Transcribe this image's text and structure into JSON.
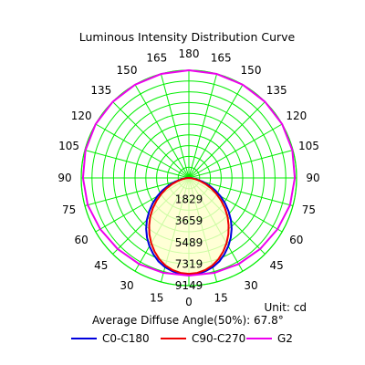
{
  "chart_data": {
    "type": "polar",
    "title": "Luminous Intensity Distribution Curve",
    "unit_label": "Unit: cd",
    "average_angle_label": "Average Diffuse Angle(50%): 67.8°",
    "angle_labels_left": [
      "0",
      "15",
      "30",
      "45",
      "60",
      "75",
      "90",
      "105",
      "120",
      "135",
      "150",
      "165",
      "180"
    ],
    "angle_labels_right": [
      "15",
      "30",
      "45",
      "60",
      "75",
      "90",
      "105",
      "120",
      "135",
      "150",
      "165"
    ],
    "radial_ticks": [
      "1829",
      "3659",
      "5489",
      "7319",
      "9149"
    ],
    "radial_max": 9149,
    "grid": true,
    "legend_position": "bottom",
    "colors": {
      "grid": "#00ee00",
      "fill": "#ffffcc"
    },
    "series": [
      {
        "name": "C0-C180",
        "color": "#0000dd",
        "angles": [
          0,
          5,
          10,
          15,
          20,
          25,
          30,
          35,
          40,
          45,
          50,
          55,
          60,
          65,
          70,
          75,
          80,
          85,
          90
        ],
        "values": [
          8250,
          8200,
          8050,
          7850,
          7550,
          7150,
          6700,
          6200,
          5650,
          5050,
          4400,
          3750,
          3100,
          2450,
          1800,
          1200,
          650,
          250,
          0
        ]
      },
      {
        "name": "C90-C270",
        "color": "#ee0000",
        "angles": [
          0,
          5,
          10,
          15,
          20,
          25,
          30,
          35,
          40,
          45,
          50,
          55,
          60,
          65,
          70,
          75,
          80,
          85,
          90
        ],
        "values": [
          8150,
          8100,
          7950,
          7700,
          7350,
          6900,
          6400,
          5850,
          5250,
          4650,
          4000,
          3350,
          2700,
          2100,
          1500,
          950,
          500,
          180,
          0
        ]
      },
      {
        "name": "G2",
        "color": "#ee00ee",
        "angles": [
          0,
          15,
          30,
          45,
          60,
          75,
          90,
          105,
          120,
          135,
          150,
          165,
          180
        ],
        "values": [
          8300,
          8350,
          8450,
          8550,
          8700,
          8900,
          9000,
          9100,
          9149,
          9149,
          9149,
          9149,
          9149
        ]
      }
    ]
  }
}
